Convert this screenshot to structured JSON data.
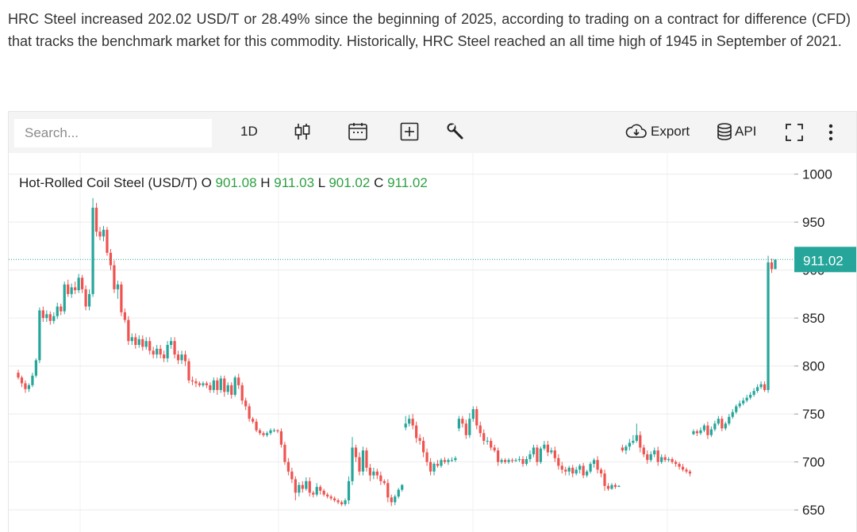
{
  "intro_text": "HRC Steel increased 202.02 USD/T or 28.49% since the beginning of 2025, according to trading on a contract for difference (CFD) that tracks the benchmark market for this commodity. Historically, HRC Steel reached an all time high of 1945 in September of 2021.",
  "toolbar": {
    "search_placeholder": "Search...",
    "interval_label": "1D",
    "export_label": "Export",
    "api_label": "API",
    "icons": [
      "candlestick-icon",
      "calendar-icon",
      "plus-box-icon",
      "wrench-icon",
      "cloud-download-icon",
      "database-icon",
      "fullscreen-icon",
      "more-vertical-icon"
    ]
  },
  "legend": {
    "title": "Hot-Rolled Coil Steel (USD/T)",
    "open_label": "O",
    "open": "901.08",
    "high_label": "H",
    "high": "911.03",
    "low_label": "L",
    "low": "901.02",
    "close_label": "C",
    "close": "911.02"
  },
  "colors": {
    "up": "#26a69a",
    "down": "#ef5350",
    "accent": "#2ea043"
  },
  "chart_data": {
    "type": "candlestick",
    "y_ticks": [
      "1000",
      "950",
      "900",
      "850",
      "800",
      "750",
      "700",
      "650"
    ],
    "ylim": [
      627,
      1022
    ],
    "last_price": 911.02,
    "last_price_label": "911.02",
    "grid": true,
    "candles": [
      [
        793,
        788,
        796,
        786
      ],
      [
        788,
        782,
        790,
        778
      ],
      [
        782,
        776,
        785,
        772
      ],
      [
        776,
        780,
        782,
        773
      ],
      [
        780,
        790,
        793,
        778
      ],
      [
        790,
        806,
        808,
        788
      ],
      [
        806,
        858,
        861,
        803
      ],
      [
        858,
        850,
        862,
        846
      ],
      [
        850,
        854,
        858,
        846
      ],
      [
        854,
        847,
        857,
        843
      ],
      [
        847,
        852,
        856,
        844
      ],
      [
        852,
        862,
        866,
        849
      ],
      [
        862,
        857,
        865,
        853
      ],
      [
        857,
        885,
        888,
        854
      ],
      [
        885,
        875,
        890,
        872
      ],
      [
        875,
        882,
        886,
        871
      ],
      [
        882,
        879,
        888,
        875
      ],
      [
        879,
        892,
        896,
        876
      ],
      [
        892,
        880,
        895,
        876
      ],
      [
        880,
        862,
        884,
        858
      ],
      [
        862,
        875,
        880,
        858
      ],
      [
        875,
        965,
        975,
        872
      ],
      [
        965,
        940,
        970,
        935
      ],
      [
        940,
        935,
        945,
        931
      ],
      [
        935,
        942,
        946,
        930
      ],
      [
        942,
        918,
        945,
        915
      ],
      [
        918,
        905,
        922,
        900
      ],
      [
        905,
        880,
        910,
        876
      ],
      [
        880,
        885,
        889,
        870
      ],
      [
        885,
        856,
        888,
        852
      ],
      [
        856,
        848,
        860,
        845
      ],
      [
        848,
        826,
        852,
        822
      ],
      [
        826,
        830,
        834,
        822
      ],
      [
        830,
        822,
        834,
        818
      ],
      [
        822,
        828,
        832,
        819
      ],
      [
        828,
        820,
        832,
        816
      ],
      [
        820,
        826,
        830,
        817
      ],
      [
        826,
        816,
        830,
        812
      ],
      [
        816,
        812,
        820,
        808
      ],
      [
        812,
        818,
        822,
        808
      ],
      [
        818,
        812,
        822,
        808
      ],
      [
        812,
        808,
        816,
        804
      ],
      [
        808,
        822,
        826,
        804
      ],
      [
        822,
        826,
        830,
        818
      ],
      [
        826,
        812,
        830,
        808
      ],
      [
        812,
        806,
        816,
        802
      ],
      [
        806,
        812,
        816,
        802
      ],
      [
        812,
        805,
        816,
        800
      ],
      [
        805,
        785,
        808,
        782
      ],
      [
        785,
        784,
        789,
        780
      ],
      [
        784,
        782,
        787,
        778
      ],
      [
        782,
        780,
        784,
        778
      ],
      [
        780,
        782,
        784,
        778
      ],
      [
        782,
        780,
        784,
        777
      ],
      [
        780,
        775,
        783,
        772
      ],
      [
        775,
        785,
        788,
        772
      ],
      [
        785,
        775,
        788,
        770
      ],
      [
        775,
        787,
        790,
        772
      ],
      [
        787,
        773,
        790,
        768
      ],
      [
        773,
        780,
        783,
        770
      ],
      [
        780,
        770,
        783,
        766
      ],
      [
        770,
        788,
        790,
        768
      ],
      [
        788,
        780,
        792,
        776
      ],
      [
        780,
        764,
        783,
        760
      ],
      [
        764,
        758,
        767,
        754
      ],
      [
        758,
        745,
        761,
        742
      ],
      [
        745,
        742,
        747,
        740
      ],
      [
        742,
        733,
        745,
        731
      ],
      [
        733,
        730,
        735,
        728
      ],
      [
        730,
        728,
        732,
        726
      ],
      [
        728,
        730,
        732,
        726
      ],
      [
        730,
        733,
        735,
        728
      ],
      [
        733,
        733,
        735,
        731
      ],
      [
        733,
        732,
        734,
        730
      ],
      [
        732,
        718,
        735,
        715
      ],
      [
        718,
        700,
        721,
        697
      ],
      [
        700,
        690,
        704,
        686
      ],
      [
        690,
        682,
        694,
        678
      ],
      [
        682,
        668,
        685,
        660
      ],
      [
        668,
        676,
        679,
        664
      ],
      [
        676,
        672,
        680,
        668
      ],
      [
        672,
        680,
        684,
        670
      ],
      [
        680,
        668,
        684,
        664
      ],
      [
        668,
        666,
        670,
        663
      ],
      [
        666,
        674,
        678,
        664
      ],
      [
        674,
        670,
        676,
        666
      ],
      [
        670,
        666,
        672,
        664
      ],
      [
        666,
        664,
        668,
        662
      ],
      [
        664,
        662,
        666,
        660
      ],
      [
        662,
        660,
        664,
        658
      ],
      [
        660,
        658,
        662,
        656
      ],
      [
        658,
        656,
        660,
        654
      ],
      [
        656,
        660,
        662,
        654
      ],
      [
        660,
        680,
        685,
        656
      ],
      [
        680,
        715,
        726,
        676
      ],
      [
        715,
        705,
        718,
        700
      ],
      [
        705,
        690,
        710,
        686
      ],
      [
        690,
        712,
        716,
        686
      ],
      [
        712,
        694,
        715,
        690
      ],
      [
        694,
        686,
        698,
        680
      ],
      [
        686,
        690,
        694,
        682
      ],
      [
        690,
        686,
        693,
        682
      ],
      [
        686,
        680,
        690,
        676
      ],
      [
        680,
        678,
        682,
        676
      ],
      [
        678,
        663,
        682,
        658
      ],
      [
        663,
        658,
        666,
        654
      ],
      [
        658,
        664,
        666,
        655
      ],
      [
        664,
        671,
        673,
        662
      ],
      [
        671,
        676,
        677,
        669
      ],
      [
        736,
        740,
        748,
        733
      ],
      [
        740,
        745,
        749,
        737
      ],
      [
        745,
        738,
        750,
        734
      ],
      [
        738,
        725,
        742,
        720
      ],
      [
        725,
        722,
        729,
        718
      ],
      [
        722,
        710,
        726,
        705
      ],
      [
        710,
        700,
        714,
        696
      ],
      [
        700,
        690,
        704,
        686
      ],
      [
        690,
        698,
        700,
        686
      ],
      [
        698,
        696,
        702,
        694
      ],
      [
        696,
        702,
        704,
        694
      ],
      [
        702,
        700,
        705,
        698
      ],
      [
        700,
        702,
        704,
        697
      ],
      [
        702,
        702,
        705,
        700
      ],
      [
        702,
        704,
        706,
        700
      ],
      [
        735,
        745,
        748,
        732
      ],
      [
        745,
        740,
        748,
        736
      ],
      [
        740,
        728,
        744,
        724
      ],
      [
        728,
        745,
        751,
        725
      ],
      [
        745,
        755,
        758,
        742
      ],
      [
        755,
        738,
        758,
        734
      ],
      [
        738,
        730,
        742,
        726
      ],
      [
        730,
        722,
        734,
        718
      ],
      [
        722,
        722,
        726,
        718
      ],
      [
        722,
        715,
        725,
        712
      ],
      [
        715,
        712,
        718,
        710
      ],
      [
        712,
        700,
        715,
        696
      ],
      [
        700,
        702,
        704,
        698
      ],
      [
        702,
        700,
        704,
        698
      ],
      [
        700,
        702,
        704,
        698
      ],
      [
        702,
        701,
        704,
        699
      ],
      [
        701,
        702,
        704,
        700
      ],
      [
        702,
        703,
        706,
        700
      ],
      [
        703,
        698,
        706,
        695
      ],
      [
        698,
        703,
        706,
        696
      ],
      [
        703,
        708,
        712,
        700
      ],
      [
        708,
        715,
        718,
        705
      ],
      [
        715,
        700,
        718,
        696
      ],
      [
        700,
        714,
        716,
        698
      ],
      [
        714,
        718,
        722,
        712
      ],
      [
        718,
        710,
        722,
        706
      ],
      [
        710,
        712,
        715,
        708
      ],
      [
        712,
        704,
        716,
        700
      ],
      [
        704,
        696,
        708,
        692
      ],
      [
        696,
        692,
        700,
        688
      ],
      [
        692,
        690,
        695,
        686
      ],
      [
        690,
        694,
        696,
        686
      ],
      [
        694,
        688,
        697,
        684
      ],
      [
        688,
        692,
        695,
        686
      ],
      [
        692,
        696,
        698,
        688
      ],
      [
        696,
        686,
        699,
        683
      ],
      [
        686,
        690,
        692,
        684
      ],
      [
        690,
        698,
        700,
        688
      ],
      [
        698,
        702,
        704,
        694
      ],
      [
        702,
        692,
        706,
        688
      ],
      [
        692,
        688,
        694,
        684
      ],
      [
        688,
        675,
        692,
        670
      ],
      [
        675,
        672,
        678,
        670
      ],
      [
        672,
        676,
        678,
        671
      ],
      [
        676,
        674,
        678,
        672
      ],
      [
        674,
        675,
        676,
        674
      ],
      [
        715,
        712,
        718,
        710
      ],
      [
        712,
        716,
        718,
        708
      ],
      [
        716,
        720,
        724,
        712
      ],
      [
        720,
        722,
        728,
        718
      ],
      [
        722,
        728,
        740,
        720
      ],
      [
        728,
        715,
        732,
        710
      ],
      [
        715,
        708,
        718,
        705
      ],
      [
        708,
        702,
        712,
        698
      ],
      [
        702,
        708,
        711,
        700
      ],
      [
        708,
        712,
        715,
        705
      ],
      [
        712,
        700,
        716,
        696
      ],
      [
        700,
        705,
        708,
        698
      ],
      [
        705,
        702,
        708,
        700
      ],
      [
        702,
        703,
        705,
        700
      ],
      [
        703,
        700,
        705,
        698
      ],
      [
        700,
        698,
        702,
        695
      ],
      [
        698,
        695,
        700,
        692
      ],
      [
        695,
        692,
        698,
        690
      ],
      [
        692,
        690,
        694,
        688
      ],
      [
        690,
        688,
        692,
        685
      ],
      [
        729,
        732,
        734,
        728
      ],
      [
        732,
        730,
        734,
        727
      ],
      [
        730,
        733,
        736,
        728
      ],
      [
        733,
        738,
        740,
        731
      ],
      [
        738,
        728,
        742,
        724
      ],
      [
        728,
        734,
        737,
        726
      ],
      [
        734,
        740,
        743,
        732
      ],
      [
        740,
        745,
        748,
        738
      ],
      [
        745,
        735,
        748,
        732
      ],
      [
        735,
        740,
        742,
        733
      ],
      [
        740,
        747,
        750,
        738
      ],
      [
        747,
        752,
        755,
        745
      ],
      [
        752,
        758,
        760,
        750
      ],
      [
        758,
        761,
        764,
        756
      ],
      [
        761,
        764,
        767,
        759
      ],
      [
        764,
        767,
        770,
        762
      ],
      [
        767,
        770,
        773,
        765
      ],
      [
        770,
        774,
        777,
        768
      ],
      [
        774,
        778,
        781,
        772
      ],
      [
        778,
        781,
        784,
        776
      ],
      [
        781,
        775,
        784,
        773
      ],
      [
        775,
        908,
        915,
        772
      ],
      [
        908,
        901,
        912,
        897
      ],
      [
        901,
        911,
        911,
        901
      ]
    ]
  }
}
